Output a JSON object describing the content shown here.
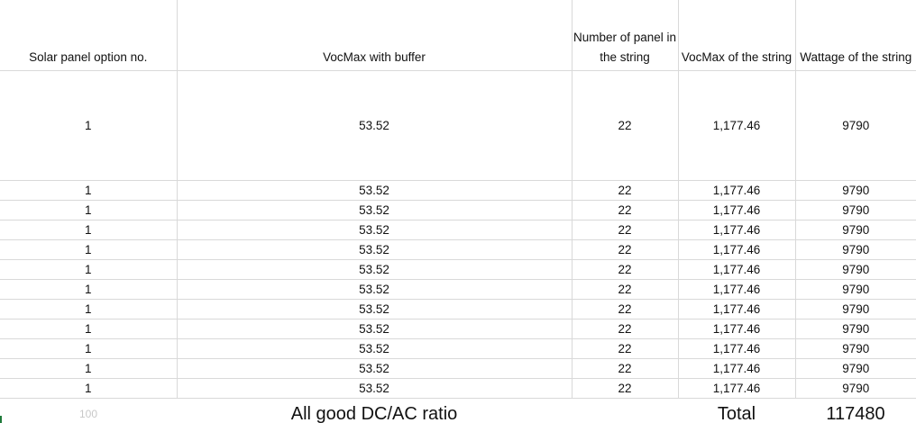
{
  "headers": {
    "option": "Solar panel option no.",
    "vocmax": "VocMax with buffer",
    "panels": "Number of panel in the string",
    "vocstring": "VocMax of the string",
    "wattage": "Wattage of the string"
  },
  "rows": [
    {
      "option": "1",
      "vocmax": "53.52",
      "panels": "22",
      "vocstring": "1,177.46",
      "wattage": "9790"
    },
    {
      "option": "1",
      "vocmax": "53.52",
      "panels": "22",
      "vocstring": "1,177.46",
      "wattage": "9790"
    },
    {
      "option": "1",
      "vocmax": "53.52",
      "panels": "22",
      "vocstring": "1,177.46",
      "wattage": "9790"
    },
    {
      "option": "1",
      "vocmax": "53.52",
      "panels": "22",
      "vocstring": "1,177.46",
      "wattage": "9790"
    },
    {
      "option": "1",
      "vocmax": "53.52",
      "panels": "22",
      "vocstring": "1,177.46",
      "wattage": "9790"
    },
    {
      "option": "1",
      "vocmax": "53.52",
      "panels": "22",
      "vocstring": "1,177.46",
      "wattage": "9790"
    },
    {
      "option": "1",
      "vocmax": "53.52",
      "panels": "22",
      "vocstring": "1,177.46",
      "wattage": "9790"
    },
    {
      "option": "1",
      "vocmax": "53.52",
      "panels": "22",
      "vocstring": "1,177.46",
      "wattage": "9790"
    },
    {
      "option": "1",
      "vocmax": "53.52",
      "panels": "22",
      "vocstring": "1,177.46",
      "wattage": "9790"
    },
    {
      "option": "1",
      "vocmax": "53.52",
      "panels": "22",
      "vocstring": "1,177.46",
      "wattage": "9790"
    },
    {
      "option": "1",
      "vocmax": "53.52",
      "panels": "22",
      "vocstring": "1,177.46",
      "wattage": "9790"
    },
    {
      "option": "1",
      "vocmax": "53.52",
      "panels": "22",
      "vocstring": "1,177.46",
      "wattage": "9790"
    }
  ],
  "footer": {
    "faint_value": "100",
    "status": "All good DC/AC ratio",
    "total_label": "Total",
    "total_value": "117480"
  },
  "colors": {
    "gridline": "#d9d9d9",
    "faint_text": "#c8c8c8",
    "corner_mark": "#1f7a3a"
  }
}
